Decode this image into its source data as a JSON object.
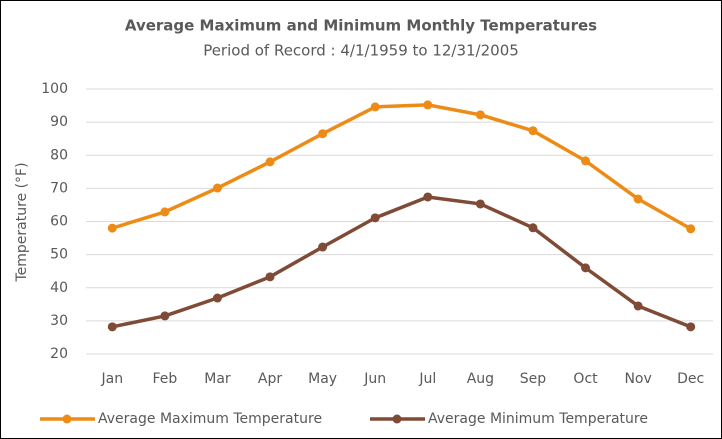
{
  "chart_data": {
    "type": "line",
    "title": "Average Maximum and Minimum Monthly Temperatures",
    "subtitle": "Period of Record : 4/1/1959 to 12/31/2005",
    "y_label": "Temperature (°F)",
    "categories": [
      "Jan",
      "Feb",
      "Mar",
      "Apr",
      "May",
      "Jun",
      "Jul",
      "Aug",
      "Sep",
      "Oct",
      "Nov",
      "Dec"
    ],
    "series": [
      {
        "name": "Average Maximum Temperature",
        "color": "#ed8b17",
        "values": [
          58.0,
          62.9,
          70.1,
          78.0,
          86.5,
          94.6,
          95.2,
          92.2,
          87.4,
          78.3,
          66.8,
          57.8
        ]
      },
      {
        "name": "Average Minimum Temperature",
        "color": "#7f4b36",
        "values": [
          28.2,
          31.5,
          36.9,
          43.3,
          52.3,
          61.1,
          67.4,
          65.3,
          58.1,
          46.0,
          34.5,
          28.2
        ]
      }
    ],
    "ylim": [
      20,
      100
    ],
    "yticks": [
      20,
      30,
      40,
      50,
      60,
      70,
      80,
      90,
      100
    ],
    "grid": true,
    "legend": "bottom"
  }
}
